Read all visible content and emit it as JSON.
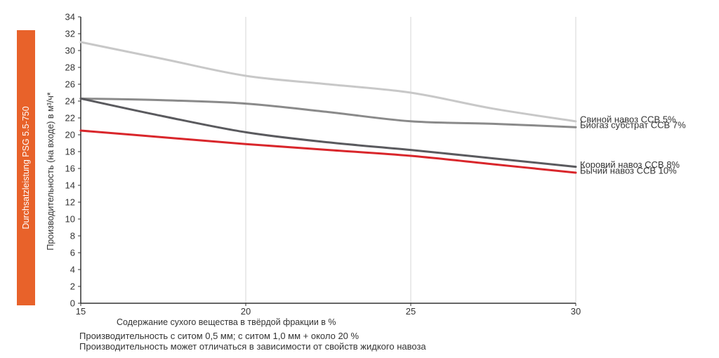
{
  "side_tab": {
    "label": "Durchsatzleistung PSG 5.5-750",
    "color": "#e8622a"
  },
  "notes": [
    "Производительность с ситом 0,5 мм; с ситом 1,0 мм + около 20 %",
    "Производительность может отличаться в зависимости от свойств жидкого навоза"
  ],
  "chart_data": {
    "type": "line",
    "title": "",
    "xlabel": "Содержание сухого вещества в твёрдой фракции в %",
    "ylabel": "Производительность (на входе) в м³/ч*",
    "xlim": [
      15,
      30
    ],
    "ylim": [
      0,
      34
    ],
    "x_ticks": [
      15,
      20,
      25,
      30
    ],
    "y_ticks": [
      0,
      2,
      4,
      6,
      8,
      10,
      12,
      14,
      16,
      18,
      20,
      22,
      24,
      26,
      28,
      30,
      32,
      34
    ],
    "grid": {
      "x": true,
      "y": false
    },
    "legend": "end-of-line labels at right",
    "series": [
      {
        "name": "Свиной навоз ССВ 5%",
        "color": "#c8c8c8",
        "x": [
          15,
          17.5,
          20,
          22.5,
          25,
          27.5,
          30
        ],
        "values": [
          31.0,
          29.0,
          27.0,
          26.0,
          25.0,
          23.1,
          21.6
        ]
      },
      {
        "name": "Биогаз субстрат ССВ 7%",
        "color": "#8a8a8a",
        "x": [
          15,
          17.5,
          20,
          22.5,
          25,
          27.5,
          30
        ],
        "values": [
          24.3,
          24.1,
          23.7,
          22.7,
          21.6,
          21.3,
          20.9
        ]
      },
      {
        "name": "Коровий навоз ССВ 8%",
        "color": "#5a5a5e",
        "x": [
          15,
          17.5,
          20,
          22.5,
          25,
          27.5,
          30
        ],
        "values": [
          24.3,
          22.2,
          20.3,
          19.1,
          18.2,
          17.2,
          16.2
        ]
      },
      {
        "name": "Бычий навоз ССВ 10%",
        "color": "#d9262b",
        "x": [
          15,
          17.5,
          20,
          22.5,
          25,
          27.5,
          30
        ],
        "values": [
          20.5,
          19.7,
          18.9,
          18.2,
          17.5,
          16.5,
          15.5
        ]
      }
    ]
  }
}
